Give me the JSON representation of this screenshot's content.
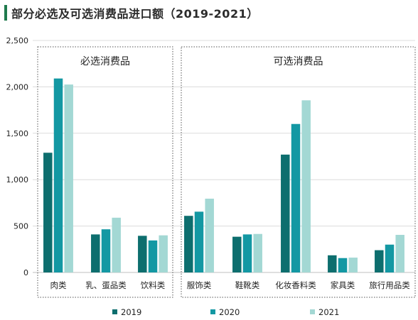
{
  "header": {
    "title": "部分必选及可选消费品进口额（2019-2021）"
  },
  "chart_data": {
    "type": "bar",
    "title": "部分必选及可选消费品进口额（2019-2021）",
    "xlabel": "",
    "ylabel": "",
    "ylim": [
      0,
      2500
    ],
    "yticks": [
      0,
      500,
      1000,
      1500,
      2000,
      2500
    ],
    "ytick_labels": [
      "0",
      "500",
      "1,000",
      "1,500",
      "2,000",
      "2,500"
    ],
    "grid": true,
    "legend_position": "bottom",
    "categories": [
      "肉类",
      "乳、蛋品类",
      "饮料类",
      "服饰类",
      "鞋靴类",
      "化妆香料类",
      "家具类",
      "旅行用品类"
    ],
    "groups": [
      {
        "label": "必选消费品",
        "categories": [
          "肉类",
          "乳、蛋品类",
          "饮料类"
        ]
      },
      {
        "label": "可选消费品",
        "categories": [
          "服饰类",
          "鞋靴类",
          "化妆香料类",
          "家具类",
          "旅行用品类"
        ]
      }
    ],
    "series": [
      {
        "name": "2019",
        "color": "#0d6e6e",
        "values": [
          1290,
          410,
          395,
          610,
          385,
          1270,
          185,
          240
        ]
      },
      {
        "name": "2020",
        "color": "#1398a3",
        "values": [
          2090,
          465,
          345,
          655,
          410,
          1600,
          155,
          300
        ]
      },
      {
        "name": "2021",
        "color": "#a3d8d4",
        "values": [
          2025,
          590,
          400,
          795,
          415,
          1855,
          160,
          405
        ]
      }
    ]
  }
}
